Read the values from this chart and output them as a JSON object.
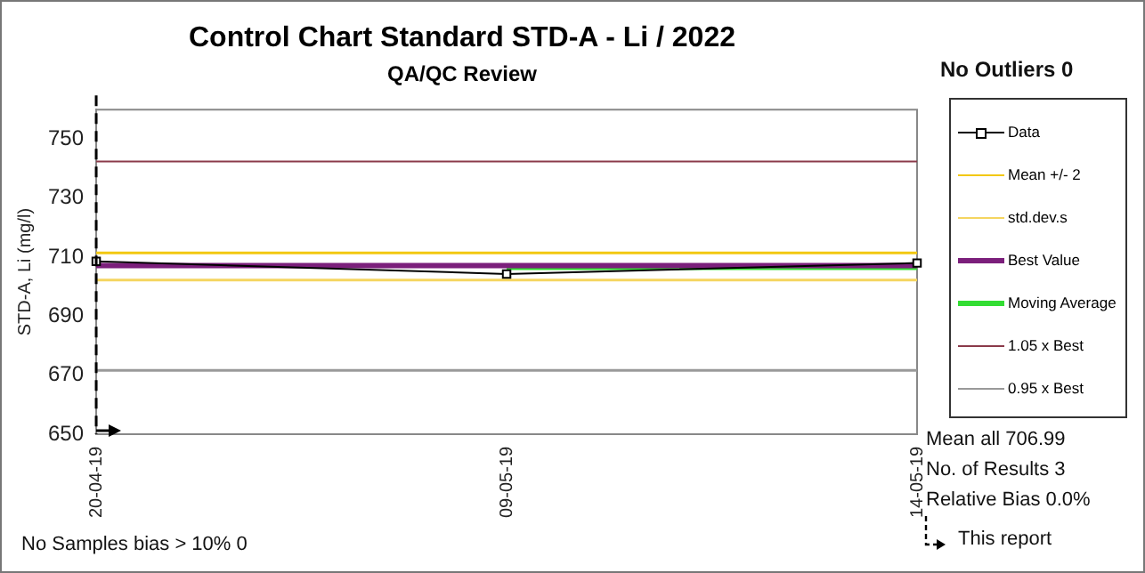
{
  "chart_data": {
    "type": "line",
    "title": "Control Chart Standard STD-A - Li / 2022",
    "subtitle": "QA/QC Review",
    "ylabel": "STD-A, Li (mg/l)",
    "categories": [
      "20-04-19",
      "09-05-19",
      "14-05-19"
    ],
    "series": [
      {
        "name": "Data",
        "color": "#000000",
        "values": [
          708.6,
          704.3,
          708
        ],
        "marker": "square"
      },
      {
        "name": "Mean +/- 2",
        "color": "#f2c811",
        "values": [
          711.4,
          711.4,
          711.4
        ]
      },
      {
        "name": "std.dev.s",
        "color": "#f5d560",
        "values": [
          702.2,
          702.2,
          702.2
        ]
      },
      {
        "name": "Best Value",
        "color": "#7b1f7b",
        "values": [
          707.1,
          707.1,
          707.1
        ]
      },
      {
        "name": "Moving Average",
        "color": "#33dd33",
        "values": [
          null,
          706.5,
          706.5
        ]
      },
      {
        "name": "1.05 x Best",
        "color": "#8b3a4a",
        "values": [
          742.4,
          742.4,
          742.4
        ]
      },
      {
        "name": "0.95 x Best",
        "color": "#999999",
        "values": [
          671.6,
          671.6,
          671.6
        ]
      }
    ],
    "ylim": [
      650,
      760
    ],
    "yticks": [
      650,
      670,
      690,
      710,
      730,
      750
    ],
    "grid": false,
    "legend": "right",
    "marker": "none",
    "line_style": "solid",
    "ref_lines": [
      {
        "axis": "x",
        "value": "20-04-19",
        "label": "This report",
        "line_style": "dashed",
        "color": "#000000"
      }
    ],
    "annotations": [
      "No Outliers 0",
      "Mean all 706.99",
      "No. of Results 3",
      "Relative Bias 0.0%",
      "No Samples bias > 10% 0"
    ]
  }
}
